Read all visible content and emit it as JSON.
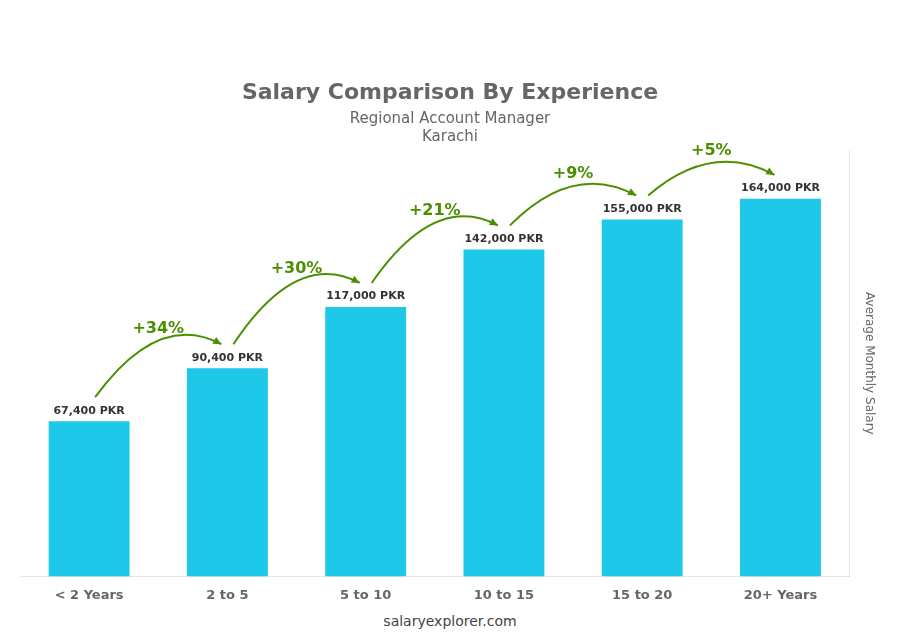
{
  "chart_data": {
    "type": "bar",
    "title": "Salary Comparison By Experience",
    "subtitle": [
      "Regional Account Manager",
      "Karachi"
    ],
    "categories": [
      "< 2 Years",
      "2 to 5",
      "5 to 10",
      "10 to 15",
      "15 to 20",
      "20+ Years"
    ],
    "values": [
      67400,
      90400,
      117000,
      142000,
      155000,
      164000
    ],
    "value_labels": [
      "67,400 PKR",
      "90,400 PKR",
      "117,000 PKR",
      "142,000 PKR",
      "155,000 PKR",
      "164,000 PKR"
    ],
    "data_labels": true,
    "color": "#1ec8e8",
    "ylabel": "Average Monthly Salary",
    "ylim": [
      0,
      185000
    ],
    "tick_labels": "x",
    "grid": false,
    "annotations": [
      {
        "text": "+34%",
        "from": "< 2 Years",
        "to": "2 to 5"
      },
      {
        "text": "+30%",
        "from": "2 to 5",
        "to": "5 to 10"
      },
      {
        "text": "+21%",
        "from": "5 to 10",
        "to": "10 to 15"
      },
      {
        "text": "+9%",
        "from": "10 to 15",
        "to": "15 to 20"
      },
      {
        "text": "+5%",
        "from": "15 to 20",
        "to": "20+ Years"
      }
    ],
    "footer": "salaryexplorer.com"
  }
}
